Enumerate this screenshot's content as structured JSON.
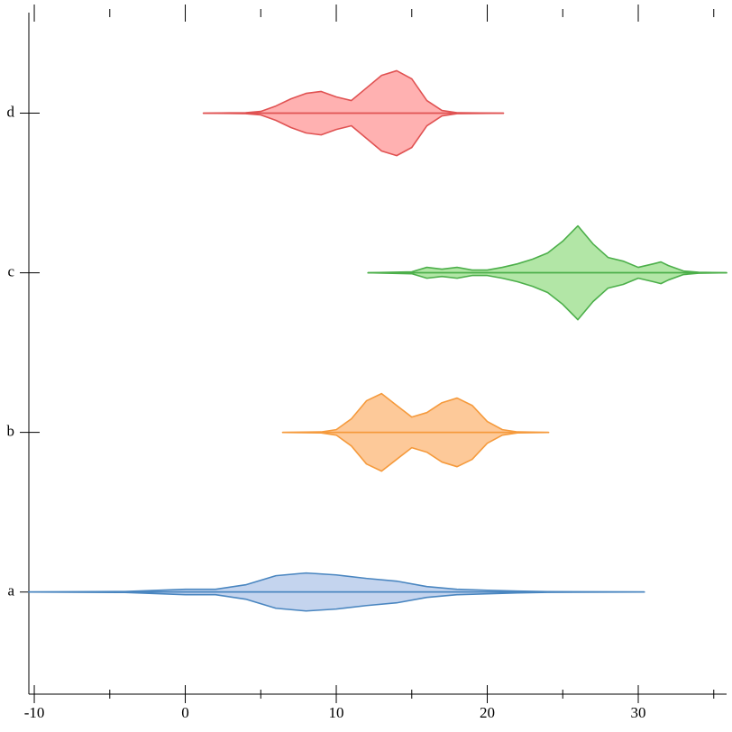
{
  "chart_data": {
    "type": "violin",
    "categories": [
      "a",
      "b",
      "c",
      "d"
    ],
    "xlim": [
      -10.36,
      35.85
    ],
    "xticks": [
      -10,
      0,
      10,
      20,
      30
    ],
    "xminorticks": [
      -5,
      5,
      15,
      25,
      35
    ],
    "ylim": [
      -0.64,
      3.63
    ],
    "series": [
      {
        "name": "a",
        "color": "#4a86c0",
        "fill": "#c4d4ee",
        "x": [
          -10.36,
          -4,
          0,
          2,
          4,
          6,
          8,
          10,
          12,
          14,
          16,
          18,
          20,
          22,
          24,
          30.4
        ],
        "values": [
          0,
          0.003,
          0.017,
          0.017,
          0.045,
          0.102,
          0.119,
          0.107,
          0.085,
          0.068,
          0.034,
          0.017,
          0.011,
          0.006,
          0.002,
          0
        ]
      },
      {
        "name": "b",
        "color": "#f59a3c",
        "fill": "#fdc999",
        "x": [
          6.45,
          9,
          10,
          11,
          12,
          13,
          14,
          15,
          16,
          17,
          18,
          19,
          20,
          21,
          22,
          24.06
        ],
        "values": [
          0,
          0.003,
          0.017,
          0.085,
          0.198,
          0.243,
          0.169,
          0.096,
          0.124,
          0.186,
          0.215,
          0.169,
          0.068,
          0.017,
          0.003,
          0
        ]
      },
      {
        "name": "c",
        "color": "#4caf4a",
        "fill": "#b2e6a6",
        "x": [
          12.1,
          15,
          16,
          17,
          18,
          19,
          20,
          21,
          22,
          23,
          24,
          25,
          26,
          27,
          28,
          29,
          30,
          31,
          31.5,
          32,
          33,
          34,
          35.85
        ],
        "values": [
          0,
          0.006,
          0.034,
          0.023,
          0.034,
          0.017,
          0.017,
          0.034,
          0.056,
          0.085,
          0.124,
          0.198,
          0.294,
          0.181,
          0.096,
          0.073,
          0.034,
          0.056,
          0.068,
          0.045,
          0.011,
          0.003,
          0
        ]
      },
      {
        "name": "d",
        "color": "#e05252",
        "fill": "#ffb1b1",
        "x": [
          1.2,
          4,
          5,
          6,
          7,
          8,
          9,
          10,
          11,
          12,
          13,
          14,
          15,
          16,
          17,
          18,
          21.07
        ],
        "values": [
          0,
          0.003,
          0.011,
          0.045,
          0.09,
          0.124,
          0.136,
          0.102,
          0.079,
          0.158,
          0.237,
          0.266,
          0.215,
          0.079,
          0.017,
          0.003,
          0
        ]
      }
    ]
  }
}
